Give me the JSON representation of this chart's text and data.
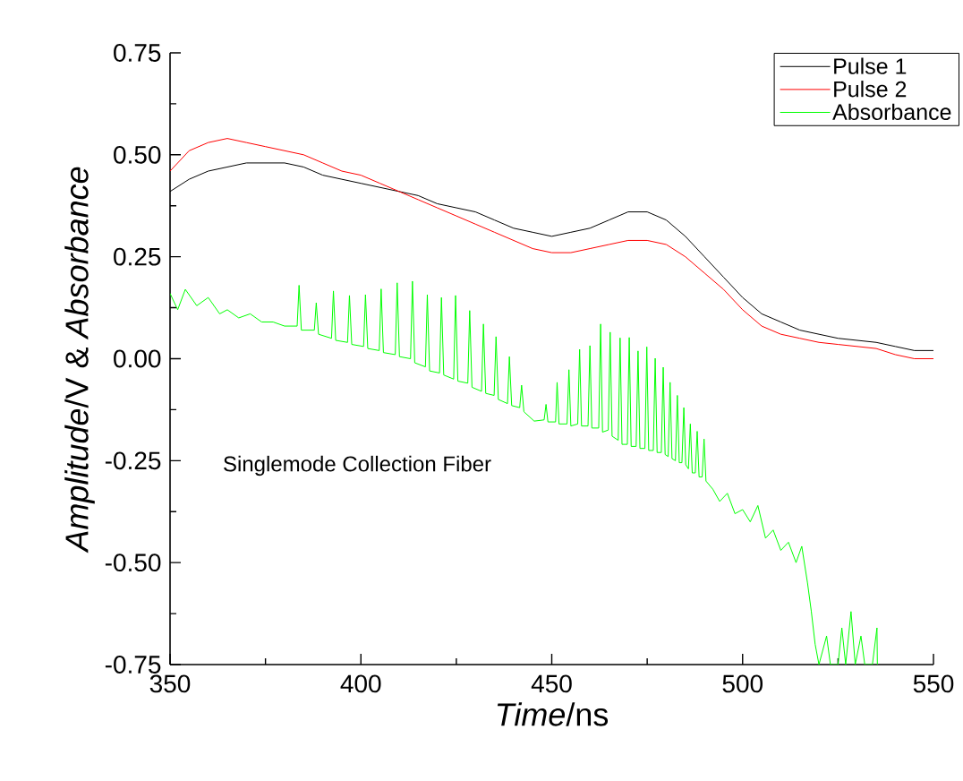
{
  "chart_data": {
    "type": "line",
    "xlabel": "*Time*/ns",
    "ylabel": "*Amplitude*/V & *Absorbance*",
    "xlim": [
      350,
      550
    ],
    "ylim": [
      -0.75,
      0.75
    ],
    "xticks": [
      350,
      400,
      450,
      500,
      550
    ],
    "yticks": [
      {
        "value": -0.75,
        "label": "-0.75"
      },
      {
        "value": -0.5,
        "label": "-0.50"
      },
      {
        "value": -0.25,
        "label": "-0.25"
      },
      {
        "value": 0,
        "label": "0.00"
      },
      {
        "value": 0.25,
        "label": "0.25"
      },
      {
        "value": 0.5,
        "label": "0.50"
      },
      {
        "value": 0.75,
        "label": "0.75"
      }
    ],
    "grid": false,
    "legend": "top right",
    "marker": "none",
    "line_style": "solid",
    "annotations": [
      "Singlemode Collection Fiber"
    ],
    "series": [
      {
        "name": "Pulse 1",
        "color": "#000000",
        "x": [
          350,
          355,
          360,
          365,
          370,
          375,
          380,
          385,
          390,
          395,
          400,
          405,
          410,
          415,
          420,
          425,
          430,
          435,
          440,
          445,
          450,
          455,
          460,
          465,
          470,
          475,
          480,
          485,
          490,
          495,
          500,
          505,
          510,
          515,
          520,
          525,
          530,
          535,
          540,
          545,
          550
        ],
        "values": [
          0.41,
          0.44,
          0.46,
          0.47,
          0.48,
          0.48,
          0.48,
          0.47,
          0.45,
          0.44,
          0.43,
          0.42,
          0.41,
          0.4,
          0.38,
          0.37,
          0.36,
          0.34,
          0.32,
          0.31,
          0.3,
          0.31,
          0.32,
          0.34,
          0.36,
          0.36,
          0.34,
          0.3,
          0.25,
          0.2,
          0.15,
          0.11,
          0.09,
          0.07,
          0.06,
          0.05,
          0.045,
          0.04,
          0.03,
          0.02,
          0.02
        ]
      },
      {
        "name": "Pulse 2",
        "color": "#ff0000",
        "x": [
          350,
          355,
          360,
          365,
          370,
          375,
          380,
          385,
          390,
          395,
          400,
          405,
          410,
          415,
          420,
          425,
          430,
          435,
          440,
          445,
          450,
          455,
          460,
          465,
          470,
          475,
          480,
          485,
          490,
          495,
          500,
          505,
          510,
          515,
          520,
          525,
          530,
          535,
          540,
          545,
          550
        ],
        "values": [
          0.46,
          0.51,
          0.53,
          0.54,
          0.53,
          0.52,
          0.51,
          0.5,
          0.48,
          0.46,
          0.45,
          0.43,
          0.41,
          0.39,
          0.37,
          0.35,
          0.33,
          0.31,
          0.29,
          0.27,
          0.26,
          0.26,
          0.27,
          0.28,
          0.29,
          0.29,
          0.28,
          0.25,
          0.21,
          0.17,
          0.12,
          0.08,
          0.06,
          0.05,
          0.04,
          0.035,
          0.03,
          0.025,
          0.01,
          0.0,
          0.0
        ]
      },
      {
        "name": "Absorbance",
        "color": "#00ff00",
        "x": [
          350,
          352,
          354,
          357,
          360,
          363,
          365,
          368,
          371,
          374,
          377,
          380,
          383.3,
          383.8,
          384.4,
          387.8,
          388.3,
          388.9,
          392.3,
          392.8,
          393.4,
          396.5,
          397.0,
          397.6,
          400.7,
          401.2,
          401.8,
          404.8,
          405.3,
          405.9,
          409.0,
          409.5,
          410.1,
          413.0,
          413.5,
          414.1,
          416.9,
          417.4,
          418.0,
          420.6,
          421.1,
          421.7,
          424.3,
          424.8,
          425.4,
          428.0,
          428.5,
          429.1,
          431.6,
          432.1,
          432.7,
          434.9,
          435.4,
          436.0,
          438.4,
          438.9,
          439.5,
          441.6,
          442.1,
          442.7,
          445.4,
          448.0,
          448.5,
          449.0,
          451.0,
          451.4,
          451.9,
          454.0,
          454.5,
          455.0,
          456.8,
          457.3,
          457.8,
          459.5,
          460.0,
          460.5,
          462.3,
          462.8,
          463.3,
          464.8,
          465.3,
          465.8,
          467.4,
          467.9,
          468.4,
          469.8,
          470.3,
          470.8,
          472.1,
          472.6,
          473.1,
          474.4,
          474.9,
          475.4,
          476.6,
          477.1,
          477.6,
          478.7,
          479.2,
          479.7,
          480.5,
          481.0,
          481.5,
          482.4,
          482.9,
          483.4,
          484.1,
          484.6,
          485.1,
          485.8,
          486.3,
          486.8,
          487.6,
          488.1,
          488.6,
          489.4,
          489.9,
          490.4,
          492.2,
          494,
          496,
          498,
          500,
          502,
          504,
          506,
          508,
          510,
          512,
          514,
          515.5,
          517,
          518,
          519,
          520,
          522,
          523,
          525,
          526,
          527,
          528.4,
          529.5,
          531,
          532,
          534,
          535.2,
          535.3
        ],
        "values": [
          0.16,
          0.12,
          0.17,
          0.13,
          0.15,
          0.11,
          0.12,
          0.1,
          0.11,
          0.09,
          0.09,
          0.08,
          0.08,
          0.18,
          0.07,
          0.07,
          0.137,
          0.06,
          0.05,
          0.166,
          0.045,
          0.04,
          0.155,
          0.035,
          0.03,
          0.157,
          0.025,
          0.02,
          0.171,
          0.015,
          0.01,
          0.186,
          0.005,
          0.0,
          0.19,
          -0.01,
          -0.02,
          0.157,
          -0.03,
          -0.035,
          0.15,
          -0.04,
          -0.05,
          0.155,
          -0.055,
          -0.06,
          0.118,
          -0.07,
          -0.08,
          0.085,
          -0.085,
          -0.09,
          0.054,
          -0.1,
          -0.11,
          0.005,
          -0.115,
          -0.12,
          -0.065,
          -0.13,
          -0.153,
          -0.15,
          -0.112,
          -0.155,
          -0.155,
          -0.058,
          -0.16,
          -0.16,
          -0.027,
          -0.165,
          -0.16,
          0.023,
          -0.165,
          -0.165,
          0.032,
          -0.17,
          -0.17,
          0.085,
          -0.18,
          -0.175,
          0.065,
          -0.19,
          -0.2,
          0.051,
          -0.21,
          -0.21,
          0.052,
          -0.215,
          -0.215,
          0.019,
          -0.22,
          -0.22,
          0.029,
          -0.225,
          -0.225,
          0.001,
          -0.23,
          -0.23,
          -0.021,
          -0.235,
          -0.24,
          -0.058,
          -0.245,
          -0.25,
          -0.09,
          -0.255,
          -0.255,
          -0.12,
          -0.26,
          -0.27,
          -0.16,
          -0.28,
          -0.28,
          -0.178,
          -0.29,
          -0.29,
          -0.197,
          -0.3,
          -0.32,
          -0.35,
          -0.33,
          -0.38,
          -0.37,
          -0.4,
          -0.36,
          -0.44,
          -0.42,
          -0.47,
          -0.45,
          -0.5,
          -0.46,
          -0.55,
          -0.62,
          -0.7,
          -0.75,
          -0.68,
          -0.75,
          -0.75,
          -0.66,
          -0.75,
          -0.62,
          -0.75,
          -0.68,
          -0.75,
          -0.75,
          -0.66,
          -0.75
        ]
      }
    ]
  }
}
